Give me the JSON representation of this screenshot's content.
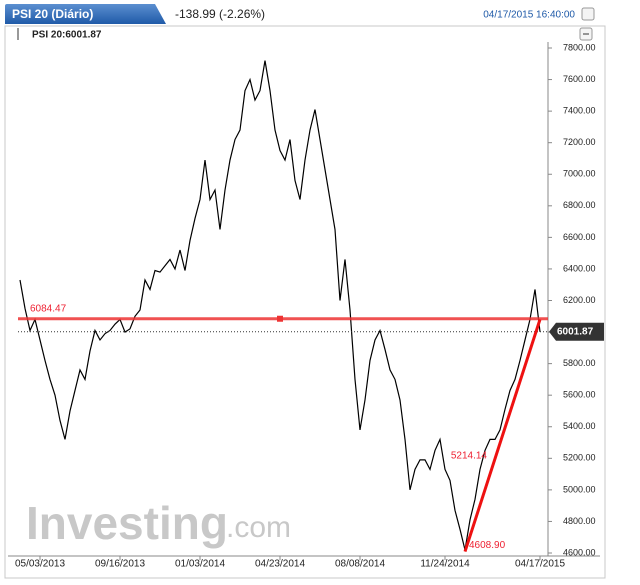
{
  "header": {
    "tab": "PSI 20 (Diário)",
    "change": "-138.99 (-2.26%)",
    "timestamp": "04/17/2015 16:40:00",
    "legend": "PSI 20:6001.87"
  },
  "watermark": {
    "brand": "Investing",
    "suffix": ".com"
  },
  "chart_data": {
    "type": "line",
    "categories": [
      null,
      null,
      null,
      null,
      "05/03/2013",
      null,
      null,
      null,
      null,
      null,
      null,
      null,
      null,
      null,
      null,
      null,
      null,
      null,
      null,
      null,
      "09/16/2013",
      null,
      null,
      null,
      null,
      null,
      null,
      null,
      null,
      null,
      null,
      null,
      null,
      null,
      null,
      null,
      "01/03/2014",
      null,
      null,
      null,
      null,
      null,
      null,
      null,
      null,
      null,
      null,
      null,
      null,
      null,
      null,
      null,
      "04/23/2014",
      null,
      null,
      null,
      null,
      null,
      null,
      null,
      null,
      null,
      null,
      null,
      null,
      null,
      null,
      null,
      "08/08/2014",
      null,
      null,
      null,
      null,
      null,
      null,
      null,
      null,
      null,
      null,
      null,
      null,
      null,
      null,
      null,
      null,
      "11/24/2014",
      null,
      null,
      null,
      null,
      null,
      null,
      null,
      null,
      null,
      null,
      null,
      null,
      null,
      null,
      null,
      null,
      null,
      null,
      "04/17/2015"
    ],
    "series": [
      {
        "name": "PSI 20",
        "color": "#000000",
        "values": [
          6330,
          6150,
          6010,
          6080,
          5950,
          5820,
          5700,
          5600,
          5440,
          5320,
          5500,
          5630,
          5760,
          5700,
          5880,
          6010,
          5950,
          5990,
          6010,
          6050,
          6080,
          6000,
          6020,
          6100,
          6140,
          6330,
          6270,
          6390,
          6380,
          6420,
          6460,
          6400,
          6520,
          6390,
          6580,
          6720,
          6840,
          7090,
          6840,
          6900,
          6650,
          6900,
          7090,
          7220,
          7280,
          7530,
          7600,
          7470,
          7530,
          7720,
          7530,
          7280,
          7150,
          7090,
          7220,
          6960,
          6840,
          7090,
          7280,
          7410,
          7220,
          7030,
          6840,
          6650,
          6200,
          6460,
          6140,
          5700,
          5380,
          5570,
          5820,
          5950,
          6010,
          5890,
          5760,
          5700,
          5570,
          5320,
          5000,
          5130,
          5190,
          5190,
          5130,
          5250,
          5320,
          5130,
          5060,
          4870,
          4750,
          4620,
          4810,
          4940,
          5130,
          5250,
          5320,
          5320,
          5380,
          5510,
          5630,
          5700,
          5820,
          5950,
          6080,
          6270,
          6001.87
        ]
      }
    ],
    "ylim": [
      4600,
      7800
    ],
    "yticks": [
      {
        "value": 4600,
        "label": "4600.00"
      },
      {
        "value": 4800,
        "label": "4800.00"
      },
      {
        "value": 5000,
        "label": "5000.00"
      },
      {
        "value": 5200,
        "label": "5200.00"
      },
      {
        "value": 5400,
        "label": "5400.00"
      },
      {
        "value": 5600,
        "label": "5600.00"
      },
      {
        "value": 5800,
        "label": "5800.00"
      },
      {
        "value": 6000,
        "label": "6000.00"
      },
      {
        "value": 6200,
        "label": "6200.00"
      },
      {
        "value": 6400,
        "label": "6400.00"
      },
      {
        "value": 6600,
        "label": "6600.00"
      },
      {
        "value": 6800,
        "label": "6800.00"
      },
      {
        "value": 7000,
        "label": "7000.00"
      },
      {
        "value": 7200,
        "label": "7200.00"
      },
      {
        "value": 7400,
        "label": "7400.00"
      },
      {
        "value": 7600,
        "label": "7600.00"
      },
      {
        "value": 7800,
        "label": "7800.00"
      }
    ],
    "grid": false,
    "horizontal_line": {
      "value": 6084.47,
      "color": "#ee3333"
    },
    "trendline": {
      "color": "#ee1111",
      "start": {
        "value": 4608.9,
        "label": "4608.90"
      },
      "mid": 5214.14,
      "end": 6080
    }
  }
}
